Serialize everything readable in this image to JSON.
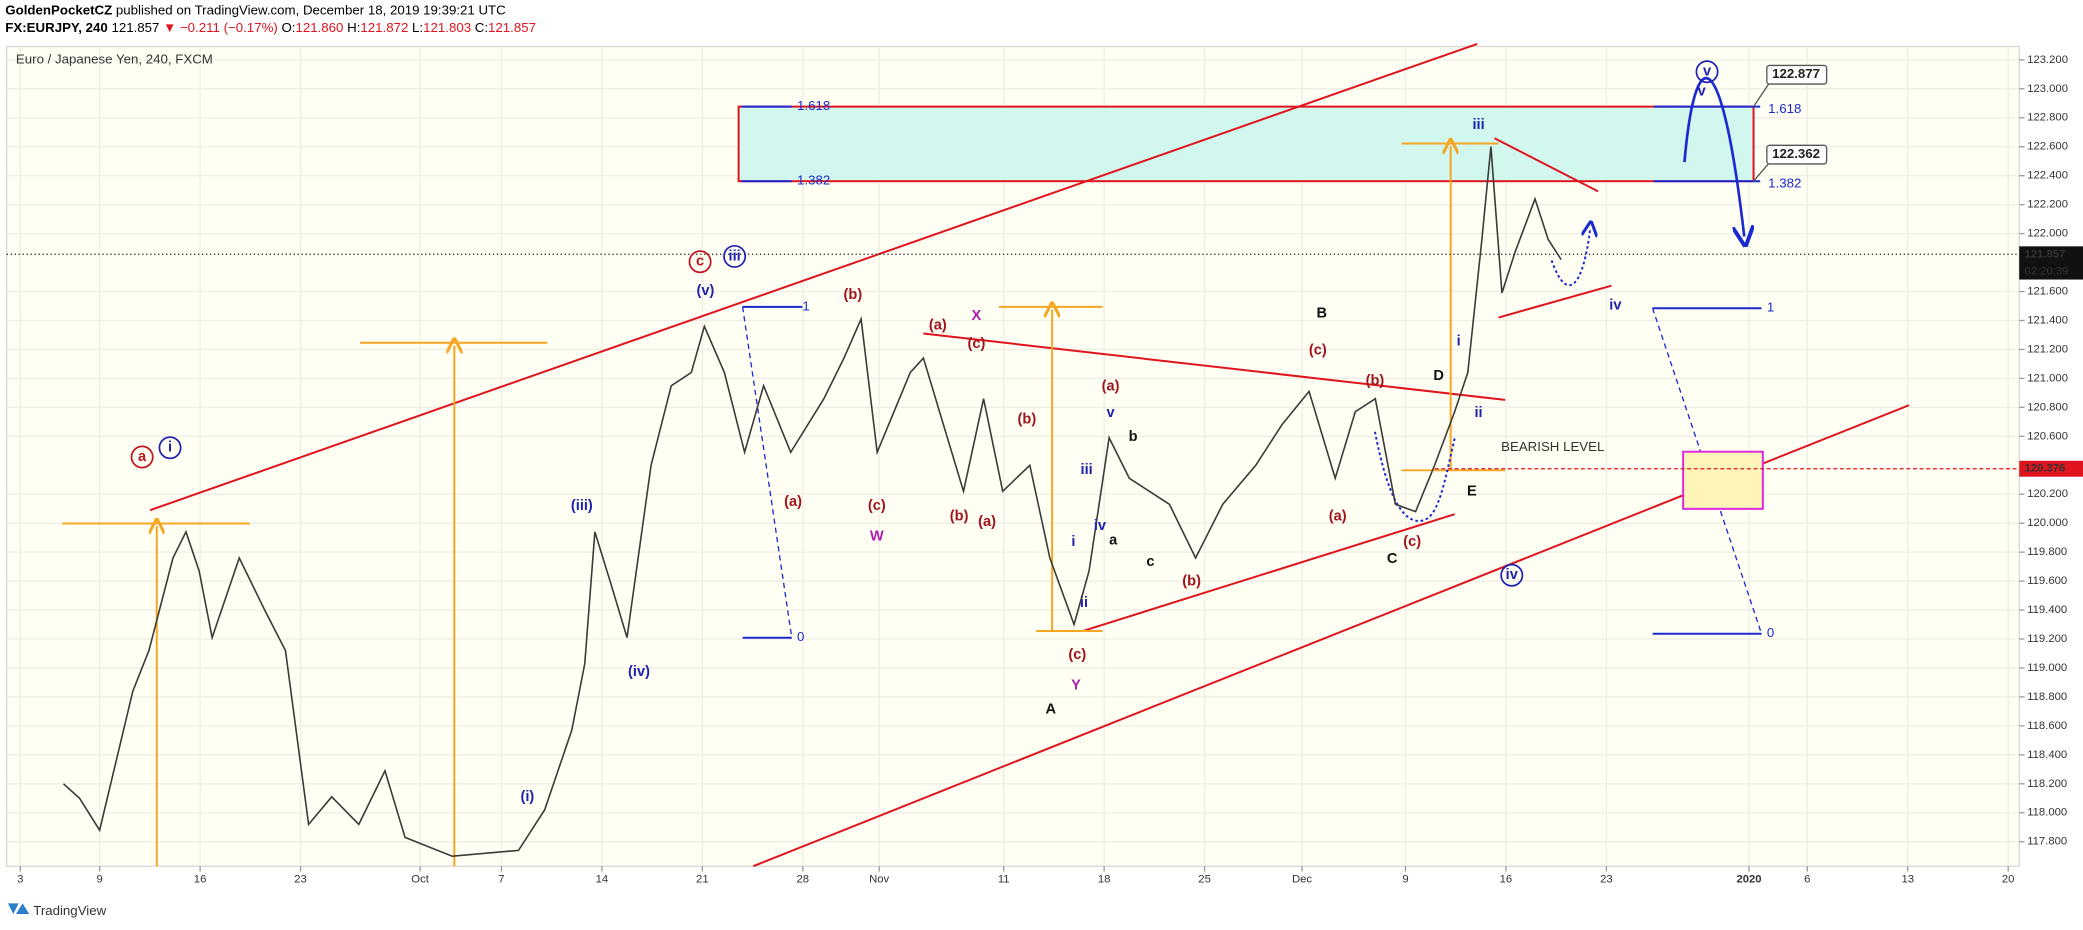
{
  "header": {
    "author": "GoldenPocketCZ",
    "published": "published on TradingView.com, December 18, 2019 19:39:21 UTC",
    "symbol": "FX:EURJPY, 240",
    "change": "▼ −0.211 (−0.17%)",
    "open_label": "O:",
    "open": "121.860",
    "high_label": "H:",
    "high": "121.872",
    "low_label": "L:",
    "low": "121.803",
    "close_label": "C:"
  },
  "footer": {
    "brand": "TradingView"
  },
  "chart_data": {
    "type": "line",
    "title": "Euro / Japanese Yen, 240, FXCM",
    "color": "#3a3a3a",
    "grid": true,
    "xlim": [
      -0.926,
      19.11
    ],
    "ylim": [
      117.631,
      123.292
    ],
    "xticks": [
      {
        "value": -0.79,
        "label": "3"
      },
      {
        "value": 0,
        "label": "9"
      },
      {
        "value": 1,
        "label": "16"
      },
      {
        "value": 2,
        "label": "23"
      },
      {
        "value": 3.19,
        "label": "Oct"
      },
      {
        "value": 4,
        "label": "7"
      },
      {
        "value": 5,
        "label": "14"
      },
      {
        "value": 6,
        "label": "21"
      },
      {
        "value": 7,
        "label": "28"
      },
      {
        "value": 7.76,
        "label": "Nov"
      },
      {
        "value": 9,
        "label": "11"
      },
      {
        "value": 10,
        "label": "18"
      },
      {
        "value": 11,
        "label": "25"
      },
      {
        "value": 11.97,
        "label": "Dec"
      },
      {
        "value": 13,
        "label": "9"
      },
      {
        "value": 14,
        "label": "16"
      },
      {
        "value": 15,
        "label": "23"
      },
      {
        "value": 16.42,
        "label": "2020"
      },
      {
        "value": 17,
        "label": "6"
      },
      {
        "value": 18,
        "label": "13"
      },
      {
        "value": 19,
        "label": "20"
      }
    ],
    "yticks": [
      {
        "value": 123.2,
        "label": "123.200"
      },
      {
        "value": 123.0,
        "label": "123.000"
      },
      {
        "value": 122.8,
        "label": "122.800"
      },
      {
        "value": 122.6,
        "label": "122.600"
      },
      {
        "value": 122.4,
        "label": "122.400"
      },
      {
        "value": 122.2,
        "label": "122.200"
      },
      {
        "value": 122.0,
        "label": "122.000"
      },
      {
        "value": 121.6,
        "label": "121.600"
      },
      {
        "value": 121.4,
        "label": "121.400"
      },
      {
        "value": 121.2,
        "label": "121.200"
      },
      {
        "value": 121.0,
        "label": "121.000"
      },
      {
        "value": 120.8,
        "label": "120.800"
      },
      {
        "value": 120.6,
        "label": "120.600"
      },
      {
        "value": 120.2,
        "label": "120.200"
      },
      {
        "value": 120.0,
        "label": "120.000"
      },
      {
        "value": 119.8,
        "label": "119.800"
      },
      {
        "value": 119.6,
        "label": "119.600"
      },
      {
        "value": 119.4,
        "label": "119.400"
      },
      {
        "value": 119.2,
        "label": "119.200"
      },
      {
        "value": 119.0,
        "label": "119.000"
      },
      {
        "value": 118.8,
        "label": "118.800"
      },
      {
        "value": 118.6,
        "label": "118.600"
      },
      {
        "value": 118.4,
        "label": "118.400"
      },
      {
        "value": 118.2,
        "label": "118.200"
      },
      {
        "value": 118.0,
        "label": "118.000"
      },
      {
        "value": 117.8,
        "label": "117.800"
      }
    ],
    "x": [
      -0.36,
      -0.2,
      0,
      0.33,
      0.49,
      0.73,
      0.86,
      0.99,
      1.12,
      1.39,
      1.65,
      1.85,
      2.08,
      2.31,
      2.58,
      2.84,
      3.04,
      3.51,
      4.17,
      4.43,
      4.7,
      4.83,
      4.93,
      5.09,
      5.25,
      5.49,
      5.69,
      5.89,
      6.02,
      6.22,
      6.42,
      6.61,
      6.88,
      7.21,
      7.41,
      7.58,
      7.74,
      8.07,
      8.2,
      8.4,
      8.6,
      8.8,
      8.99,
      9.26,
      9.46,
      9.7,
      9.85,
      10.05,
      10.25,
      10.45,
      10.65,
      10.91,
      11.18,
      11.51,
      11.77,
      12.04,
      12.3,
      12.5,
      12.7,
      12.9,
      13.1,
      13.29,
      13.49,
      13.62,
      13.76,
      13.85,
      13.96,
      14.09,
      14.29,
      14.42,
      14.55
    ],
    "values": [
      118.2,
      118.1,
      117.88,
      118.84,
      119.12,
      119.76,
      119.94,
      119.67,
      119.21,
      119.76,
      119.39,
      119.12,
      117.92,
      118.11,
      117.92,
      118.29,
      117.83,
      117.7,
      117.74,
      118.02,
      118.57,
      119.03,
      119.94,
      119.58,
      119.21,
      120.4,
      120.95,
      121.04,
      121.36,
      121.04,
      120.49,
      120.95,
      120.49,
      120.86,
      121.14,
      121.41,
      120.49,
      121.04,
      121.14,
      120.68,
      120.22,
      120.86,
      120.22,
      120.4,
      119.76,
      119.3,
      119.67,
      120.59,
      120.31,
      120.22,
      120.13,
      119.76,
      120.13,
      120.4,
      120.68,
      120.91,
      120.31,
      120.77,
      120.86,
      120.13,
      120.08,
      120.4,
      120.77,
      121.04,
      121.96,
      122.6,
      121.59,
      121.87,
      122.24,
      121.96,
      121.82
    ],
    "last_price": 121.857,
    "countdown": "02:20:39",
    "bearish_level": 120.376,
    "bearish_label": "BEARISH LEVEL",
    "fib_extension": {
      "ratios": [
        1.618,
        1.382
      ],
      "prices": [
        122.877,
        122.362
      ]
    },
    "fib_retracement_ratios": [
      1,
      0
    ],
    "annotations": [
      {
        "text": "c",
        "color": "#c0141e"
      },
      {
        "text": "iii",
        "color": "#1f22b0"
      },
      {
        "text": "(v)",
        "color": "#1f22b0"
      },
      {
        "text": "a",
        "color": "#c0141e"
      },
      {
        "text": "i",
        "color": "#1f22b0"
      },
      {
        "text": "(iii)",
        "color": "#1f22b0"
      },
      {
        "text": "(iv)",
        "color": "#1f22b0"
      },
      {
        "text": "(i)",
        "color": "#1f22b0"
      },
      {
        "text": "(b)",
        "color": "#a0141e"
      },
      {
        "text": "(a)",
        "color": "#a0141e"
      },
      {
        "text": "(c)",
        "color": "#a0141e"
      },
      {
        "text": "W",
        "color": "#b01cb0"
      },
      {
        "text": "X",
        "color": "#b01cb0"
      },
      {
        "text": "(a)",
        "color": "#a0141e"
      },
      {
        "text": "(c)",
        "color": "#a0141e"
      },
      {
        "text": "(b)",
        "color": "#a0141e"
      },
      {
        "text": "(a)",
        "color": "#a0141e"
      },
      {
        "text": "(b)",
        "color": "#a0141e"
      },
      {
        "text": "(a)",
        "color": "#a0141e"
      },
      {
        "text": "v",
        "color": "#1f22b0"
      },
      {
        "text": "iii",
        "color": "#1f22b0"
      },
      {
        "text": "b",
        "color": "#111111"
      },
      {
        "text": "iv",
        "color": "#1f22b0"
      },
      {
        "text": "a",
        "color": "#111111"
      },
      {
        "text": "i",
        "color": "#1f22b0"
      },
      {
        "text": "c",
        "color": "#111111"
      },
      {
        "text": "ii",
        "color": "#1f22b0"
      },
      {
        "text": "(b)",
        "color": "#a0141e"
      },
      {
        "text": "(c)",
        "color": "#a0141e"
      },
      {
        "text": "Y",
        "color": "#b01cb0"
      },
      {
        "text": "A",
        "color": "#111111"
      },
      {
        "text": "B",
        "color": "#111111"
      },
      {
        "text": "(c)",
        "color": "#a0141e"
      },
      {
        "text": "(b)",
        "color": "#a0141e"
      },
      {
        "text": "D",
        "color": "#111111"
      },
      {
        "text": "i",
        "color": "#1f22b0"
      },
      {
        "text": "ii",
        "color": "#1f22b0"
      },
      {
        "text": "(a)",
        "color": "#a0141e"
      },
      {
        "text": "(c)",
        "color": "#a0141e"
      },
      {
        "text": "C",
        "color": "#111111"
      },
      {
        "text": "E",
        "color": "#111111"
      },
      {
        "text": "iv",
        "color": "#1f22b0"
      },
      {
        "text": "iii",
        "color": "#1f22b0"
      },
      {
        "text": "iv",
        "color": "#1f22b0"
      },
      {
        "text": "v",
        "color": "#1f22b0"
      },
      {
        "text": "v",
        "color": "#1f22b0"
      }
    ]
  }
}
